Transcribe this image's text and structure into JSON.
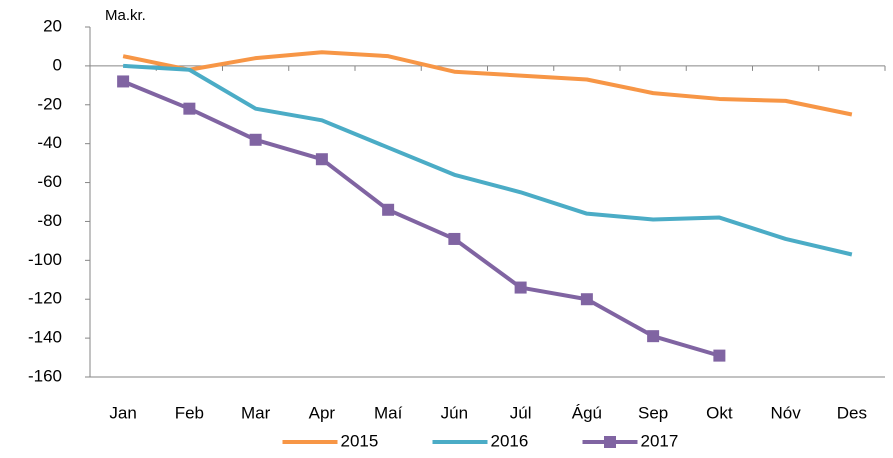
{
  "chart_data": {
    "type": "line",
    "unit_label": "Ma.kr.",
    "categories": [
      "Jan",
      "Feb",
      "Mar",
      "Apr",
      "Maí",
      "Jún",
      "Júl",
      "Ágú",
      "Sep",
      "Okt",
      "Nóv",
      "Des"
    ],
    "series": [
      {
        "name": "2015",
        "color": "#f79646",
        "marker": false,
        "values": [
          5,
          -2,
          4,
          7,
          5,
          -3,
          -5,
          -7,
          -14,
          -17,
          -18,
          -25
        ]
      },
      {
        "name": "2016",
        "color": "#4bacc6",
        "marker": false,
        "values": [
          0,
          -2,
          -22,
          -28,
          -42,
          -56,
          -65,
          -76,
          -79,
          -78,
          -89,
          -97
        ]
      },
      {
        "name": "2017",
        "color": "#8064a2",
        "marker": true,
        "values": [
          -8,
          -22,
          -38,
          -48,
          -74,
          -89,
          -114,
          -120,
          -139,
          -149,
          null,
          null
        ]
      }
    ],
    "ylim": [
      -160,
      20
    ],
    "yticks": [
      -160,
      -140,
      -120,
      -100,
      -80,
      -60,
      -40,
      -20,
      0,
      20
    ],
    "grid": false,
    "legend": "bottom"
  }
}
